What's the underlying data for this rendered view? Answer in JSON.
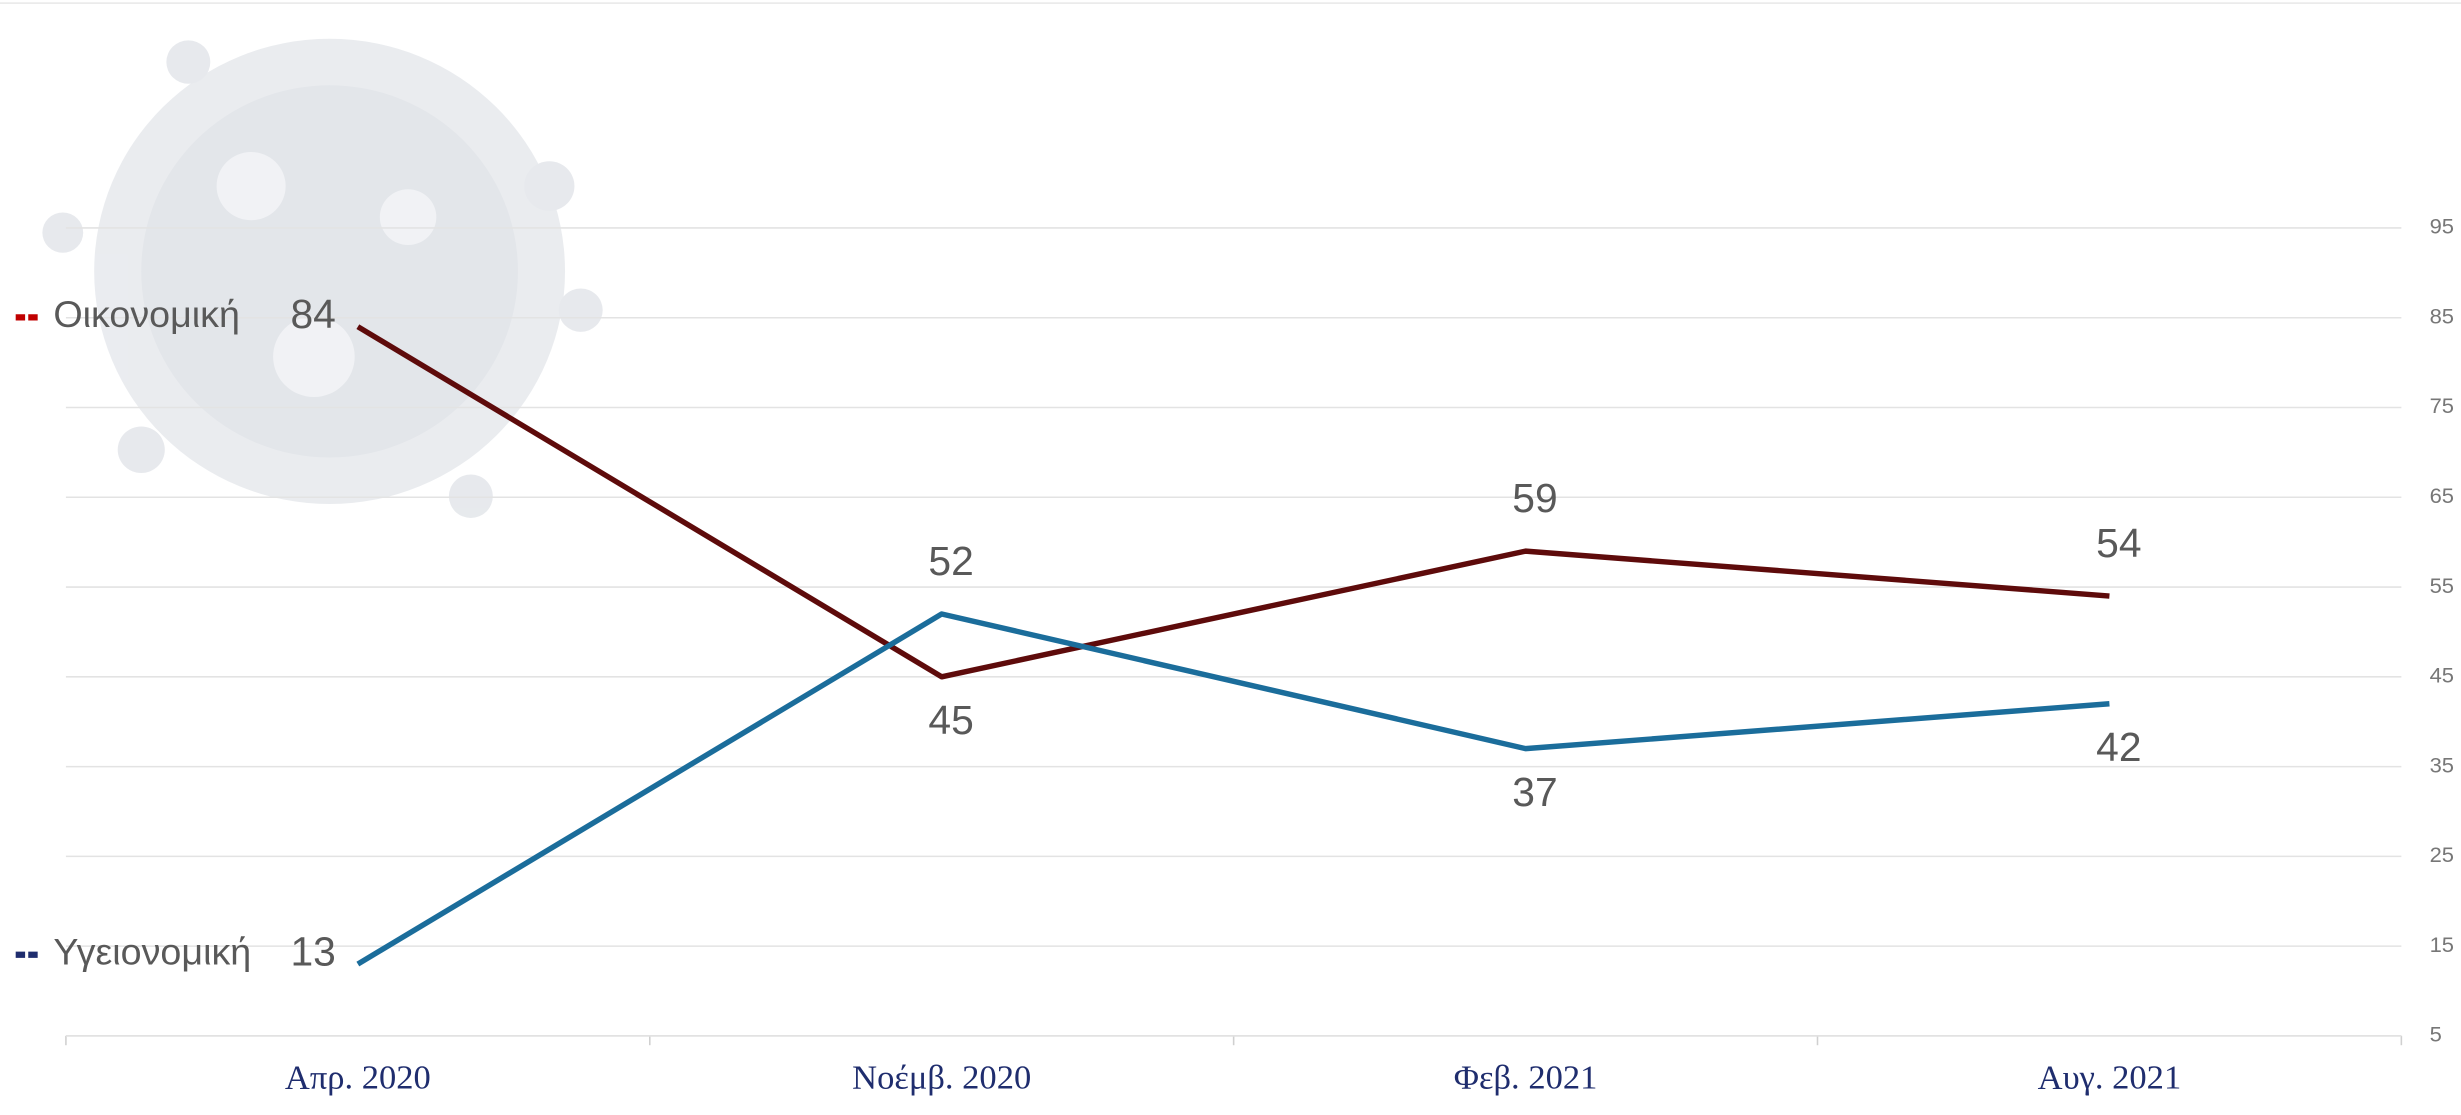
{
  "chart_data": {
    "type": "line",
    "categories": [
      "Απρ. 2020",
      "Νοέμβ. 2020",
      "Φεβ. 2021",
      "Αυγ. 2021"
    ],
    "series": [
      {
        "name": "Οικονομική",
        "color": "#5e0b0b",
        "legend_color": "#c00000",
        "values": [
          84,
          45,
          59,
          54
        ]
      },
      {
        "name": "Υγειονομική",
        "color": "#1b6d9b",
        "legend_color": "#1f2d6e",
        "values": [
          13,
          52,
          37,
          42
        ]
      }
    ],
    "ylim": [
      5,
      95
    ],
    "yticks": [
      5,
      15,
      25,
      35,
      45,
      55,
      65,
      75,
      85,
      95
    ],
    "grid": true,
    "y_axis_side": "right"
  }
}
